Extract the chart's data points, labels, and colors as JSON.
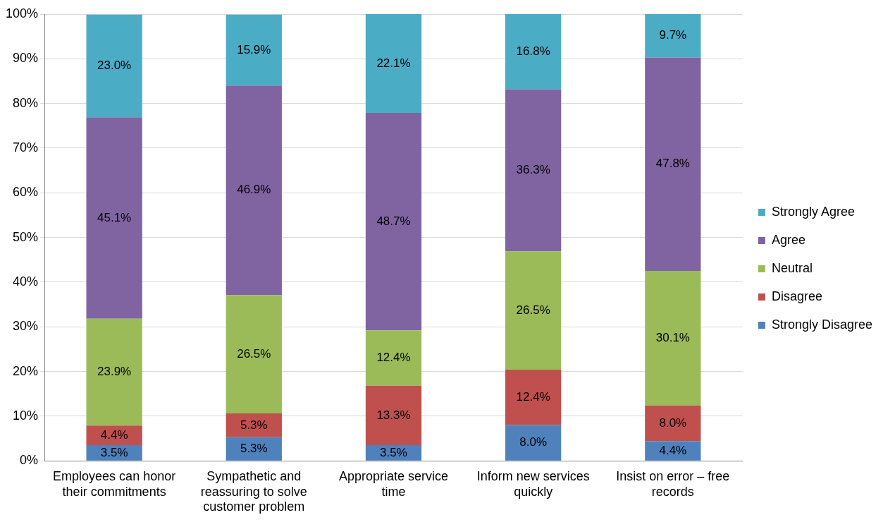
{
  "chart_data": {
    "type": "bar",
    "stacked": true,
    "categories": [
      "Employees can honor their commitments",
      "Sympathetic and reassuring to solve customer problem",
      "Appropriate service time",
      "Inform new services quickly",
      "Insist on error – free records"
    ],
    "series": [
      {
        "name": "Strongly Disagree",
        "color": "#4f81bd",
        "values": [
          3.5,
          5.3,
          3.5,
          8.0,
          4.4
        ],
        "value_labels": [
          "3.5%",
          "5.3%",
          "3.5%",
          "8.0%",
          "4.4%"
        ]
      },
      {
        "name": "Disagree",
        "color": "#c0504d",
        "values": [
          4.4,
          5.3,
          13.3,
          12.4,
          8.0
        ],
        "value_labels": [
          "4.4%",
          "5.3%",
          "13.3%",
          "12.4%",
          "8.0%"
        ]
      },
      {
        "name": "Neutral",
        "color": "#9bbb59",
        "values": [
          23.9,
          26.5,
          12.4,
          26.5,
          30.1
        ],
        "value_labels": [
          "23.9%",
          "26.5%",
          "12.4%",
          "26.5%",
          "30.1%"
        ]
      },
      {
        "name": "Agree",
        "color": "#8064a2",
        "values": [
          45.1,
          46.9,
          48.7,
          36.3,
          47.8
        ],
        "value_labels": [
          "45.1%",
          "46.9%",
          "48.7%",
          "36.3%",
          "47.8%"
        ]
      },
      {
        "name": "Strongly Agree",
        "color": "#4bacc6",
        "values": [
          23.0,
          15.9,
          22.1,
          16.8,
          9.7
        ],
        "value_labels": [
          "23.0%",
          "15.9%",
          "22.1%",
          "16.8%",
          "9.7%"
        ]
      }
    ],
    "ylim": [
      0,
      100
    ],
    "yticks": [
      {
        "value": 0,
        "label": "0%"
      },
      {
        "value": 10,
        "label": "10%"
      },
      {
        "value": 20,
        "label": "20%"
      },
      {
        "value": 30,
        "label": "30%"
      },
      {
        "value": 40,
        "label": "40%"
      },
      {
        "value": 50,
        "label": "50%"
      },
      {
        "value": 60,
        "label": "60%"
      },
      {
        "value": 70,
        "label": "70%"
      },
      {
        "value": 80,
        "label": "80%"
      },
      {
        "value": 90,
        "label": "90%"
      },
      {
        "value": 100,
        "label": "100%"
      }
    ],
    "grid": "y",
    "legend": "right"
  }
}
